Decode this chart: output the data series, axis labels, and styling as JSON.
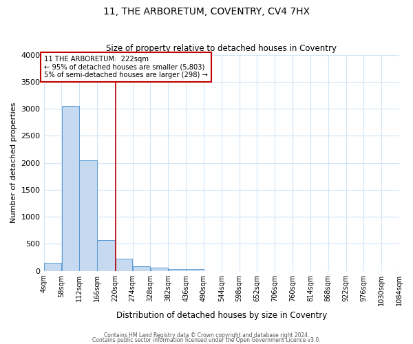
{
  "title": "11, THE ARBORETUM, COVENTRY, CV4 7HX",
  "subtitle": "Size of property relative to detached houses in Coventry",
  "xlabel": "Distribution of detached houses by size in Coventry",
  "ylabel": "Number of detached properties",
  "bar_color": "#c5d9f1",
  "bar_edge_color": "#5b9bd5",
  "grid_color": "#d0e4f7",
  "background_color": "#ffffff",
  "bins": [
    4,
    58,
    112,
    166,
    220,
    274,
    328,
    382,
    436,
    490,
    544,
    598,
    652,
    706,
    760,
    814,
    868,
    922,
    976,
    1030,
    1084
  ],
  "bin_labels": [
    "4sqm",
    "58sqm",
    "112sqm",
    "166sqm",
    "220sqm",
    "274sqm",
    "328sqm",
    "382sqm",
    "436sqm",
    "490sqm",
    "544sqm",
    "598sqm",
    "652sqm",
    "706sqm",
    "760sqm",
    "814sqm",
    "868sqm",
    "922sqm",
    "976sqm",
    "1030sqm",
    "1084sqm"
  ],
  "values": [
    150,
    3050,
    2050,
    570,
    230,
    80,
    55,
    30,
    30,
    0,
    0,
    0,
    0,
    0,
    0,
    0,
    0,
    0,
    0,
    0
  ],
  "property_line_x": 222,
  "property_line_color": "#c00000",
  "annotation_line1": "11 THE ARBORETUM:  222sqm",
  "annotation_line2": "← 95% of detached houses are smaller (5,803)",
  "annotation_line3": "5% of semi-detached houses are larger (298) →",
  "annotation_box_color": "#c00000",
  "ylim": [
    0,
    4000
  ],
  "yticks": [
    0,
    500,
    1000,
    1500,
    2000,
    2500,
    3000,
    3500,
    4000
  ],
  "footer1": "Contains HM Land Registry data © Crown copyright and database right 2024.",
  "footer2": "Contains public sector information licensed under the Open Government Licence v3.0."
}
